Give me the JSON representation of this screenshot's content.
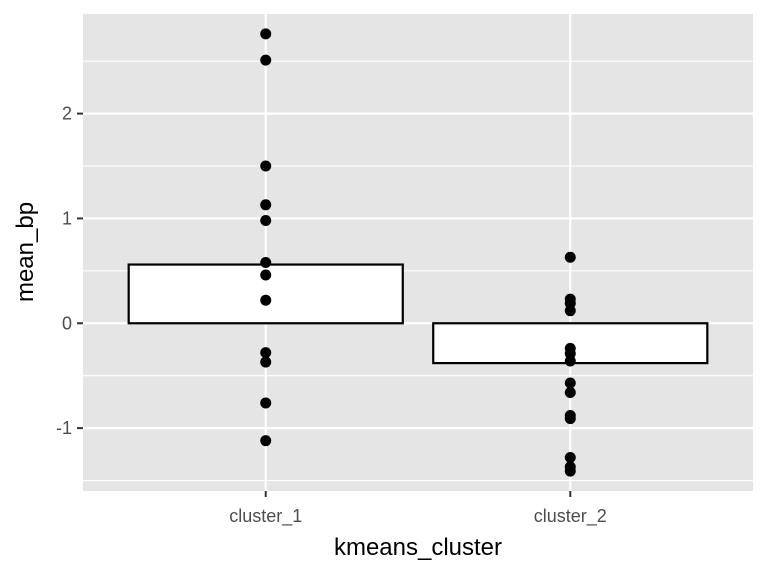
{
  "chart_data": {
    "type": "bar",
    "xlabel": "kmeans_cluster",
    "ylabel": "mean_bp",
    "categories": [
      "cluster_1",
      "cluster_2"
    ],
    "values": [
      0.56,
      -0.38
    ],
    "ylim": [
      -1.6,
      2.95
    ],
    "yticks": [
      -1,
      0,
      1,
      2
    ],
    "grid": true,
    "panel_color": "#e5e5e5",
    "bar_fill": "#ffffff",
    "bar_outline": "#000000",
    "point_color": "#000000",
    "points": [
      {
        "category": "cluster_1",
        "y": 2.76
      },
      {
        "category": "cluster_1",
        "y": 2.51
      },
      {
        "category": "cluster_1",
        "y": 1.5
      },
      {
        "category": "cluster_1",
        "y": 1.13
      },
      {
        "category": "cluster_1",
        "y": 0.98
      },
      {
        "category": "cluster_1",
        "y": 0.58
      },
      {
        "category": "cluster_1",
        "y": 0.46
      },
      {
        "category": "cluster_1",
        "y": 0.22
      },
      {
        "category": "cluster_1",
        "y": -0.28
      },
      {
        "category": "cluster_1",
        "y": -0.37
      },
      {
        "category": "cluster_1",
        "y": -0.76
      },
      {
        "category": "cluster_1",
        "y": -1.12
      },
      {
        "category": "cluster_2",
        "y": 0.63
      },
      {
        "category": "cluster_2",
        "y": 0.23
      },
      {
        "category": "cluster_2",
        "y": 0.19
      },
      {
        "category": "cluster_2",
        "y": 0.12
      },
      {
        "category": "cluster_2",
        "y": -0.24
      },
      {
        "category": "cluster_2",
        "y": -0.29
      },
      {
        "category": "cluster_2",
        "y": -0.36
      },
      {
        "category": "cluster_2",
        "y": -0.57
      },
      {
        "category": "cluster_2",
        "y": -0.66
      },
      {
        "category": "cluster_2",
        "y": -0.88
      },
      {
        "category": "cluster_2",
        "y": -0.91
      },
      {
        "category": "cluster_2",
        "y": -1.28
      },
      {
        "category": "cluster_2",
        "y": -1.37
      },
      {
        "category": "cluster_2",
        "y": -1.41
      }
    ]
  }
}
